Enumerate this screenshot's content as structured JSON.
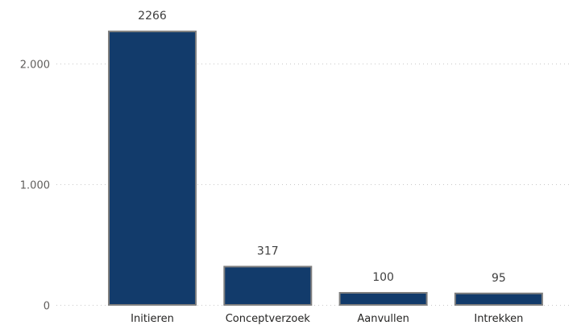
{
  "chart_data": {
    "type": "bar",
    "title": "",
    "xlabel": "",
    "ylabel": "",
    "categories": [
      "Initieren",
      "Conceptverzoek",
      "Aanvullen",
      "Intrekken"
    ],
    "values": [
      2266,
      317,
      100,
      95
    ],
    "data_labels": [
      "2266",
      "317",
      "100",
      "95"
    ],
    "y_ticks": [
      0,
      1000,
      2000
    ],
    "y_tick_labels": [
      "0",
      "1.000",
      "2.000"
    ],
    "ylim": [
      0,
      2380
    ],
    "grid": true,
    "legend": "none",
    "colors": {
      "bar_fill": "#123b6b",
      "bar_outline": "#7f7f7f"
    }
  }
}
